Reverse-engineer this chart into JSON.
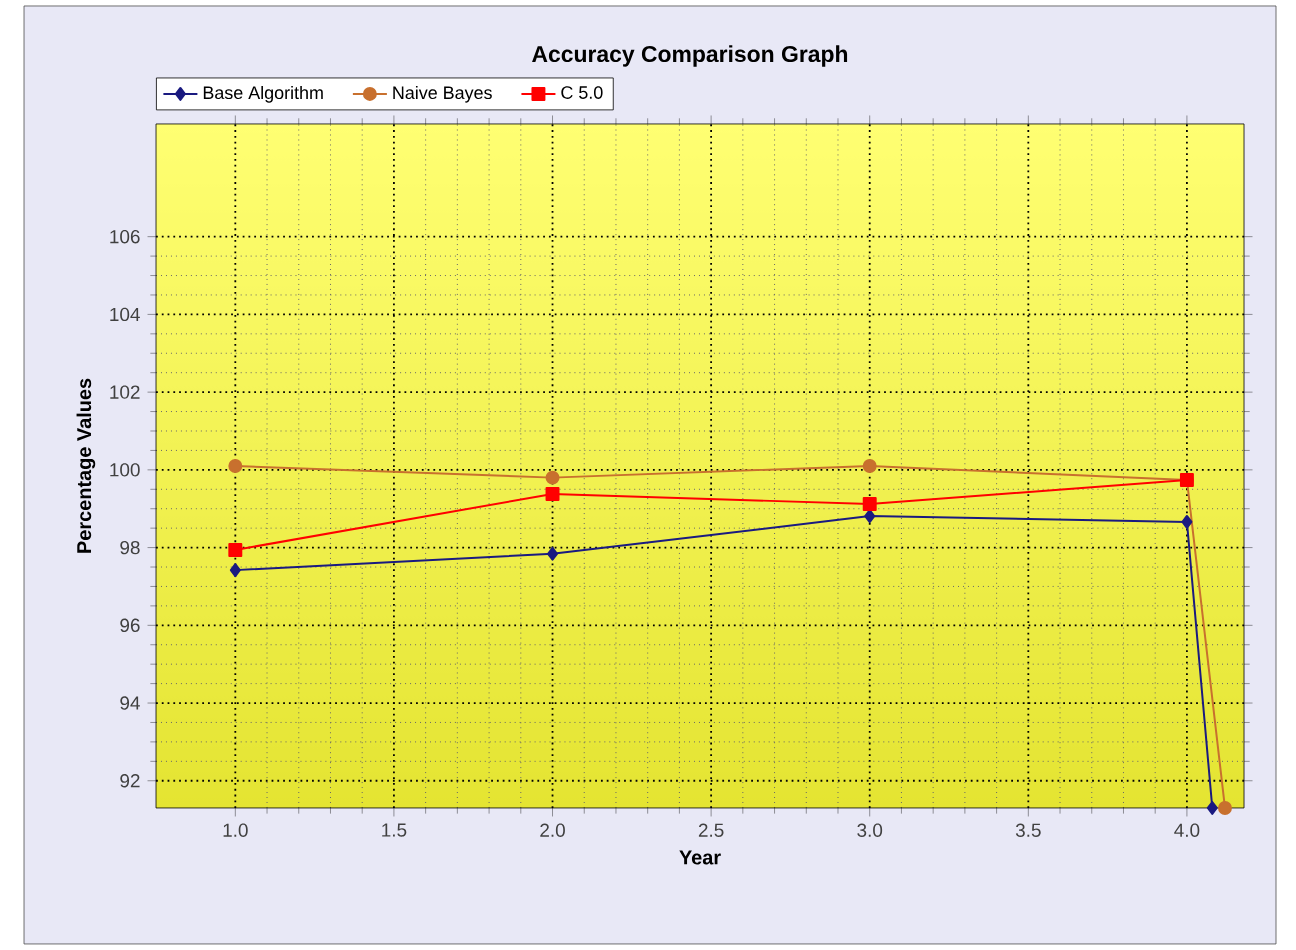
{
  "chart_data": {
    "type": "line",
    "title": "Accuracy Comparison Graph",
    "xlabel": "Year",
    "ylabel": "Percentage Values",
    "xlim": [
      0.75,
      4.18
    ],
    "xticks": [
      {
        "value": 1,
        "label": "1.0"
      },
      {
        "value": 1.5,
        "label": "1.5"
      },
      {
        "value": 2,
        "label": "2.0"
      },
      {
        "value": 2.5,
        "label": "2.5"
      },
      {
        "value": 3,
        "label": "3.0"
      },
      {
        "value": 3.5,
        "label": "3.5"
      },
      {
        "value": 4,
        "label": "4.0"
      }
    ],
    "ylim": [
      91.3,
      108.9
    ],
    "yticks": [
      92,
      94,
      96,
      98,
      100,
      102,
      104,
      106
    ],
    "grid": true,
    "legend": "top",
    "line_style": "solid",
    "series": [
      {
        "name": "Base Algorithm",
        "color": "#1a1a80",
        "marker": "diamond",
        "x": [
          1,
          2,
          3,
          4,
          4.08
        ],
        "values": [
          97.42,
          97.84,
          98.81,
          98.66,
          91.3
        ]
      },
      {
        "name": "Naive Bayes",
        "color": "#c8702e",
        "marker": "circle",
        "x": [
          1,
          2,
          3,
          4,
          4.12
        ],
        "values": [
          100.1,
          99.8,
          100.1,
          99.74,
          91.3
        ]
      },
      {
        "name": "C 5.0",
        "color": "#ff0000",
        "marker": "square",
        "x": [
          1,
          2,
          3,
          4
        ],
        "values": [
          97.94,
          99.38,
          99.12,
          99.74
        ]
      }
    ]
  }
}
